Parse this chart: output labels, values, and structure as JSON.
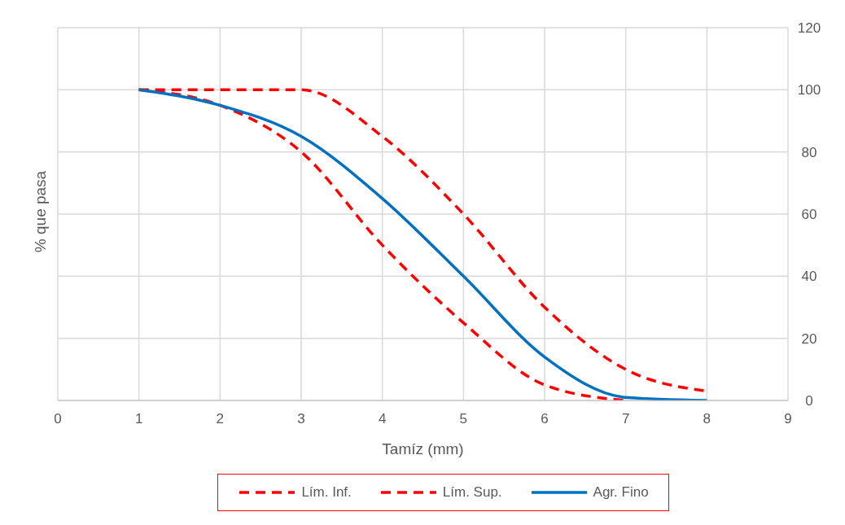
{
  "chart_data": {
    "type": "line",
    "xlabel": "Tamíz (mm)",
    "ylabel": "% que pasa",
    "x": [
      1,
      2,
      3,
      4,
      5,
      6,
      7,
      8
    ],
    "series": [
      {
        "name": "Lím. Inf.",
        "color": "#ff0000",
        "line_style": "dashed",
        "values": [
          100,
          95,
          80,
          50,
          25,
          5,
          0,
          null
        ]
      },
      {
        "name": "Lím. Sup.",
        "color": "#ff0000",
        "line_style": "dashed",
        "values": [
          100,
          100,
          100,
          85,
          60,
          30,
          10,
          3
        ]
      },
      {
        "name": "Agr. Fino",
        "color": "#0070c0",
        "line_style": "solid",
        "values": [
          100,
          95,
          85,
          65,
          40,
          14,
          1,
          0
        ]
      }
    ],
    "xlim": [
      0,
      9
    ],
    "xticks": [
      0,
      1,
      2,
      3,
      4,
      5,
      6,
      7,
      8,
      9
    ],
    "ylim": [
      0,
      120
    ],
    "yticks": [
      0,
      20,
      40,
      60,
      80,
      100,
      120
    ],
    "tick_labels": "x_y2side",
    "grid": true,
    "legend": "bottom"
  }
}
